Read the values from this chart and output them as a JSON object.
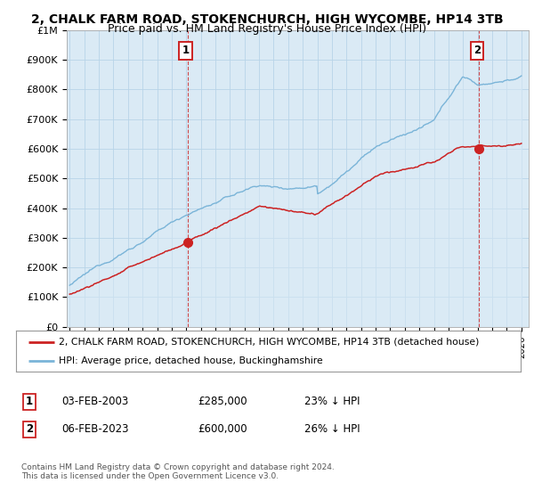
{
  "title": "2, CHALK FARM ROAD, STOKENCHURCH, HIGH WYCOMBE, HP14 3TB",
  "subtitle": "Price paid vs. HM Land Registry's House Price Index (HPI)",
  "ylabel_ticks": [
    "£0",
    "£100K",
    "£200K",
    "£300K",
    "£400K",
    "£500K",
    "£600K",
    "£700K",
    "£800K",
    "£900K",
    "£1M"
  ],
  "ytick_values": [
    0,
    100000,
    200000,
    300000,
    400000,
    500000,
    600000,
    700000,
    800000,
    900000,
    1000000
  ],
  "ylim": [
    0,
    1000000
  ],
  "xlim_start": 1994.8,
  "xlim_end": 2026.5,
  "hpi_color": "#7ab4d8",
  "hpi_fill_color": "#daeaf5",
  "price_color": "#cc2222",
  "annotation_box_color": "#cc2222",
  "sale1_x": 2003.1,
  "sale1_y": 285000,
  "sale2_x": 2023.1,
  "sale2_y": 600000,
  "legend_label_red": "2, CHALK FARM ROAD, STOKENCHURCH, HIGH WYCOMBE, HP14 3TB (detached house)",
  "legend_label_blue": "HPI: Average price, detached house, Buckinghamshire",
  "annotation1_label": "1",
  "annotation2_label": "2",
  "table_row1": [
    "1",
    "03-FEB-2003",
    "£285,000",
    "23% ↓ HPI"
  ],
  "table_row2": [
    "2",
    "06-FEB-2023",
    "£600,000",
    "26% ↓ HPI"
  ],
  "footer": "Contains HM Land Registry data © Crown copyright and database right 2024.\nThis data is licensed under the Open Government Licence v3.0.",
  "bg_color": "#ffffff",
  "chart_bg_color": "#daeaf5",
  "grid_color": "#b8d4e8",
  "title_fontsize": 10,
  "subtitle_fontsize": 9
}
